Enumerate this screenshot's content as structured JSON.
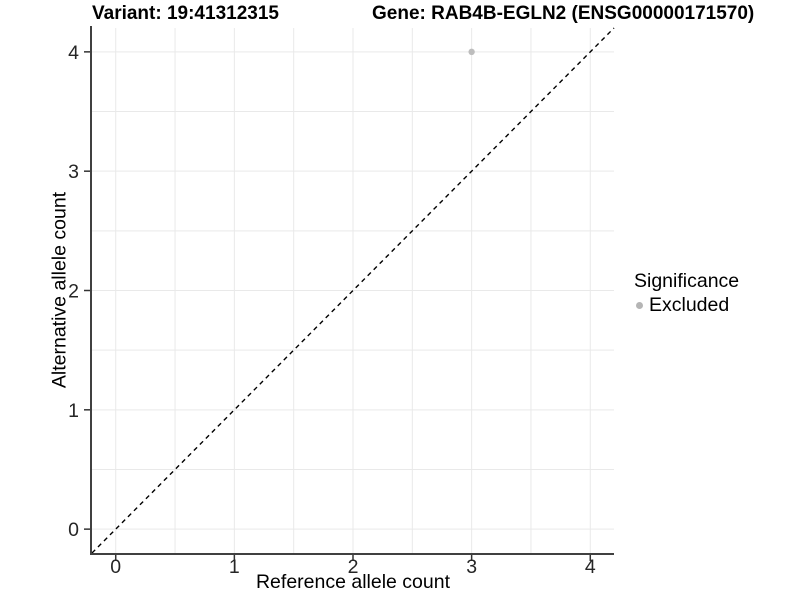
{
  "chart_data": {
    "type": "scatter",
    "titles": {
      "left": "Variant: 19:41312315",
      "right": "Gene: RAB4B-EGLN2 (ENSG00000171570)"
    },
    "xlabel": "Reference allele count",
    "ylabel": "Alternative allele count",
    "xlim": [
      -0.2,
      4.2
    ],
    "ylim": [
      -0.2,
      4.2
    ],
    "x_ticks": [
      0,
      1,
      2,
      3,
      4
    ],
    "y_ticks": [
      0,
      1,
      2,
      3,
      4
    ],
    "grid": true,
    "grid_step": 0.5,
    "points": [
      {
        "x": 3,
        "y": 4,
        "series": "Excluded"
      }
    ],
    "reference_line": {
      "kind": "identity",
      "style": "dashed"
    },
    "legend": {
      "title": "Significance",
      "position": "right",
      "items": [
        {
          "label": "Excluded",
          "color": "#b5b5b5",
          "marker": "circle"
        }
      ]
    },
    "colors": {
      "point": "#bdbdbd",
      "grid": "#e9e9e9",
      "axis": "#404040",
      "tick": "#333333",
      "dashed_line": "#000000",
      "text": "#000000"
    }
  }
}
